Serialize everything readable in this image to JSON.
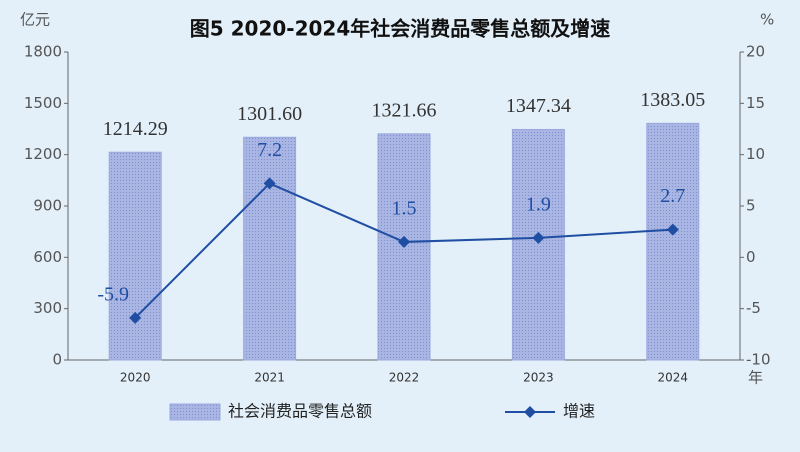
{
  "chart_data": {
    "type": "bar",
    "title": "图5  2020-2024年社会消费品零售总额及增速",
    "y_label": "亿元",
    "y2_label": "%",
    "x_label": "年",
    "categories": [
      "2020",
      "2021",
      "2022",
      "2023",
      "2024"
    ],
    "series": [
      {
        "name": "社会消费品零售总额",
        "type": "bar",
        "color": "#9aa8dc",
        "values": [
          1214.29,
          1301.6,
          1321.66,
          1347.34,
          1383.05
        ],
        "value_labels": [
          "1214.29",
          "1301.60",
          "1321.66",
          "1347.34",
          "1383.05"
        ]
      },
      {
        "name": "增速",
        "type": "line",
        "axis": "y2",
        "color": "#1f4ea3",
        "values": [
          -5.9,
          7.2,
          1.5,
          1.9,
          2.7
        ]
      }
    ],
    "ylim": [
      0,
      1800
    ],
    "yticks": [
      0,
      300,
      600,
      900,
      1200,
      1500,
      1800
    ],
    "y2lim": [
      -10,
      20
    ],
    "y2ticks": [
      -10,
      -5,
      0,
      5,
      10,
      15,
      20
    ]
  }
}
